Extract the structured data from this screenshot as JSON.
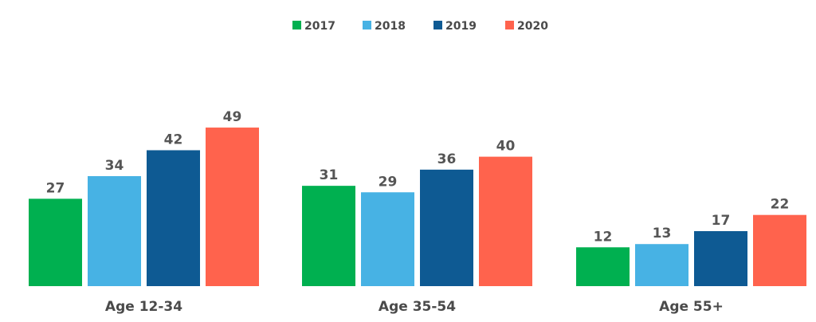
{
  "chart_data": {
    "type": "bar",
    "title": "",
    "xlabel": "",
    "ylabel": "",
    "categories": [
      "Age 12-34",
      "Age 35-54",
      "Age 55+"
    ],
    "series": [
      {
        "name": "2017",
        "color": "#00b050",
        "values": [
          27,
          31,
          12
        ]
      },
      {
        "name": "2018",
        "color": "#47b2e4",
        "values": [
          34,
          29,
          13
        ]
      },
      {
        "name": "2019",
        "color": "#0e5a93",
        "values": [
          42,
          36,
          17
        ]
      },
      {
        "name": "2020",
        "color": "#ff634d",
        "values": [
          49,
          40,
          22
        ]
      }
    ],
    "ylim": [
      0,
      49
    ],
    "legend_position": "top-center",
    "grid": false,
    "data_labels": true
  }
}
